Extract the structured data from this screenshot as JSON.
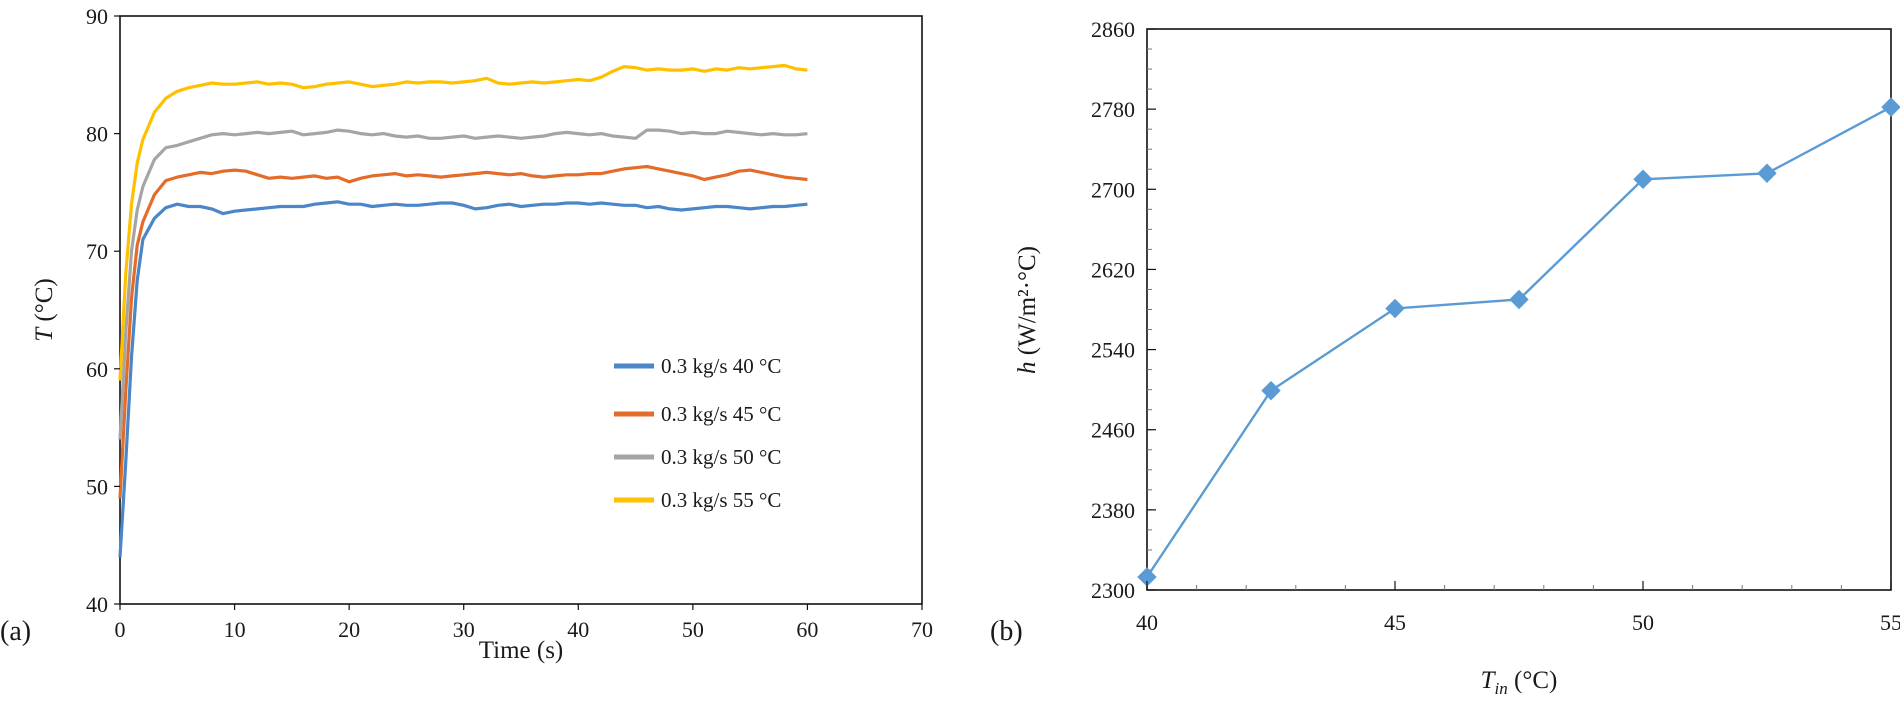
{
  "chart_data": [
    {
      "panel": "(a)",
      "type": "line",
      "title": "",
      "xlabel": "Time (s)",
      "ylabel_var": "T",
      "ylabel_unit": " (°C)",
      "xlim": [
        0,
        70
      ],
      "ylim": [
        40,
        90
      ],
      "xticks": [
        "0",
        "10",
        "20",
        "30",
        "40",
        "50",
        "60",
        "70"
      ],
      "yticks": [
        "40",
        "50",
        "60",
        "70",
        "80",
        "90"
      ],
      "grid": false,
      "legend_position": "center-right",
      "series": [
        {
          "name": "0.3 kg/s  40 °C",
          "color": "#4A86C8",
          "x": [
            0,
            0.5,
            1,
            1.5,
            2,
            3,
            4,
            5,
            6,
            7,
            8,
            9,
            10,
            11,
            12,
            13,
            14,
            15,
            16,
            17,
            18,
            19,
            20,
            21,
            22,
            23,
            24,
            25,
            26,
            27,
            28,
            29,
            30,
            31,
            32,
            33,
            34,
            35,
            36,
            37,
            38,
            39,
            40,
            41,
            42,
            43,
            44,
            45,
            46,
            47,
            48,
            49,
            50,
            51,
            52,
            53,
            54,
            55,
            56,
            57,
            58,
            59,
            60
          ],
          "values": [
            44.0,
            52.0,
            61.0,
            67.5,
            71.0,
            72.8,
            73.7,
            74.0,
            73.8,
            73.8,
            73.6,
            73.2,
            73.4,
            73.5,
            73.6,
            73.7,
            73.8,
            73.8,
            73.8,
            74.0,
            74.1,
            74.2,
            74.0,
            74.0,
            73.8,
            73.9,
            74.0,
            73.9,
            73.9,
            74.0,
            74.1,
            74.1,
            73.9,
            73.6,
            73.7,
            73.9,
            74.0,
            73.8,
            73.9,
            74.0,
            74.0,
            74.1,
            74.1,
            74.0,
            74.1,
            74.0,
            73.9,
            73.9,
            73.7,
            73.8,
            73.6,
            73.5,
            73.6,
            73.7,
            73.8,
            73.8,
            73.7,
            73.6,
            73.7,
            73.8,
            73.8,
            73.9,
            74.0
          ]
        },
        {
          "name": "0.3 kg/s  45 °C",
          "color": "#E36C2A",
          "x": [
            0,
            0.5,
            1,
            1.5,
            2,
            3,
            4,
            5,
            6,
            7,
            8,
            9,
            10,
            11,
            12,
            13,
            14,
            15,
            16,
            17,
            18,
            19,
            20,
            21,
            22,
            23,
            24,
            25,
            26,
            27,
            28,
            29,
            30,
            31,
            32,
            33,
            34,
            35,
            36,
            37,
            38,
            39,
            40,
            41,
            42,
            43,
            44,
            45,
            46,
            47,
            48,
            49,
            50,
            51,
            52,
            53,
            54,
            55,
            56,
            57,
            58,
            59,
            60
          ],
          "values": [
            49.0,
            58.0,
            66.0,
            70.5,
            72.5,
            74.8,
            76.0,
            76.3,
            76.5,
            76.7,
            76.6,
            76.8,
            76.9,
            76.8,
            76.5,
            76.2,
            76.3,
            76.2,
            76.3,
            76.4,
            76.2,
            76.3,
            75.9,
            76.2,
            76.4,
            76.5,
            76.6,
            76.4,
            76.5,
            76.4,
            76.3,
            76.4,
            76.5,
            76.6,
            76.7,
            76.6,
            76.5,
            76.6,
            76.4,
            76.3,
            76.4,
            76.5,
            76.5,
            76.6,
            76.6,
            76.8,
            77.0,
            77.1,
            77.2,
            77.0,
            76.8,
            76.6,
            76.4,
            76.1,
            76.3,
            76.5,
            76.8,
            76.9,
            76.7,
            76.5,
            76.3,
            76.2,
            76.1
          ]
        },
        {
          "name": "0.3 kg/s  50 °C",
          "color": "#A5A5A5",
          "x": [
            0,
            0.5,
            1,
            1.5,
            2,
            3,
            4,
            5,
            6,
            7,
            8,
            9,
            10,
            11,
            12,
            13,
            14,
            15,
            16,
            17,
            18,
            19,
            20,
            21,
            22,
            23,
            24,
            25,
            26,
            27,
            28,
            29,
            30,
            31,
            32,
            33,
            34,
            35,
            36,
            37,
            38,
            39,
            40,
            41,
            42,
            43,
            44,
            45,
            46,
            47,
            48,
            49,
            50,
            51,
            52,
            53,
            54,
            55,
            56,
            57,
            58,
            59,
            60
          ],
          "values": [
            54.0,
            63.0,
            70.0,
            73.5,
            75.5,
            77.8,
            78.8,
            79.0,
            79.3,
            79.6,
            79.9,
            80.0,
            79.9,
            80.0,
            80.1,
            80.0,
            80.1,
            80.2,
            79.9,
            80.0,
            80.1,
            80.3,
            80.2,
            80.0,
            79.9,
            80.0,
            79.8,
            79.7,
            79.8,
            79.6,
            79.6,
            79.7,
            79.8,
            79.6,
            79.7,
            79.8,
            79.7,
            79.6,
            79.7,
            79.8,
            80.0,
            80.1,
            80.0,
            79.9,
            80.0,
            79.8,
            79.7,
            79.6,
            80.3,
            80.3,
            80.2,
            80.0,
            80.1,
            80.0,
            80.0,
            80.2,
            80.1,
            80.0,
            79.9,
            80.0,
            79.9,
            79.9,
            80.0
          ]
        },
        {
          "name": "0.3 kg/s  55 °C",
          "color": "#FFC000",
          "x": [
            0,
            0.5,
            1,
            1.5,
            2,
            3,
            4,
            5,
            6,
            7,
            8,
            9,
            10,
            11,
            12,
            13,
            14,
            15,
            16,
            17,
            18,
            19,
            20,
            21,
            22,
            23,
            24,
            25,
            26,
            27,
            28,
            29,
            30,
            31,
            32,
            33,
            34,
            35,
            36,
            37,
            38,
            39,
            40,
            41,
            42,
            43,
            44,
            45,
            46,
            47,
            48,
            49,
            50,
            51,
            52,
            53,
            54,
            55,
            56,
            57,
            58,
            59,
            60
          ],
          "values": [
            59.0,
            68.0,
            74.0,
            77.5,
            79.5,
            81.8,
            83.0,
            83.6,
            83.9,
            84.1,
            84.3,
            84.2,
            84.2,
            84.3,
            84.4,
            84.2,
            84.3,
            84.2,
            83.9,
            84.0,
            84.2,
            84.3,
            84.4,
            84.2,
            84.0,
            84.1,
            84.2,
            84.4,
            84.3,
            84.4,
            84.4,
            84.3,
            84.4,
            84.5,
            84.7,
            84.3,
            84.2,
            84.3,
            84.4,
            84.3,
            84.4,
            84.5,
            84.6,
            84.5,
            84.8,
            85.3,
            85.7,
            85.6,
            85.4,
            85.5,
            85.4,
            85.4,
            85.5,
            85.3,
            85.5,
            85.4,
            85.6,
            85.5,
            85.6,
            85.7,
            85.8,
            85.5,
            85.4
          ]
        }
      ]
    },
    {
      "panel": "(b)",
      "type": "line",
      "title": "",
      "xlabel_var": "T",
      "xlabel_sub": "in",
      "xlabel_unit": " (°C)",
      "ylabel_var": "h",
      "ylabel_unit": " (W/m²·°C)",
      "xlim": [
        40,
        55
      ],
      "ylim": [
        2300,
        2860
      ],
      "xticks": [
        "40",
        "45",
        "50",
        "55"
      ],
      "yticks": [
        "2300",
        "2380",
        "2460",
        "2540",
        "2620",
        "2700",
        "2780",
        "2860"
      ],
      "grid": false,
      "marker": "diamond",
      "series": [
        {
          "name": "h",
          "color": "#5B9BD5",
          "x": [
            40,
            42.5,
            45,
            47.5,
            50,
            52.5,
            55
          ],
          "values": [
            2313,
            2499,
            2581,
            2590,
            2710,
            2716,
            2782
          ]
        }
      ]
    }
  ]
}
